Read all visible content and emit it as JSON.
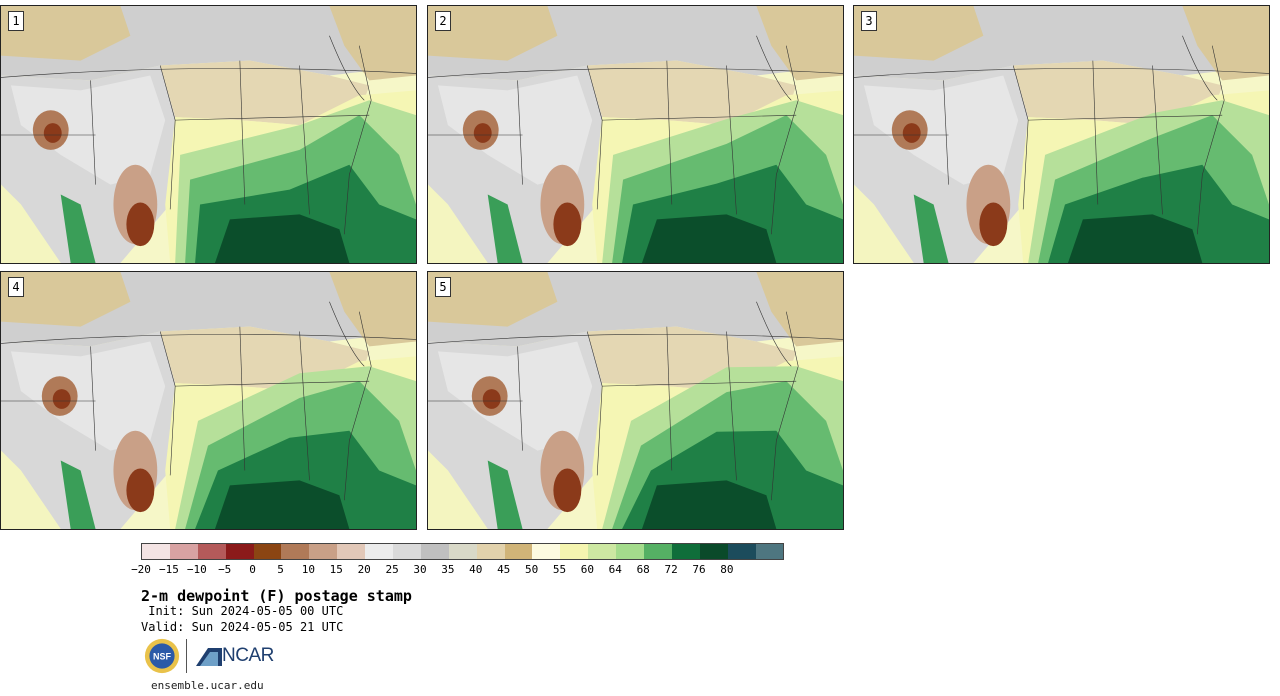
{
  "stamps": [
    {
      "id": "1",
      "variant": 0
    },
    {
      "id": "2",
      "variant": 1
    },
    {
      "id": "3",
      "variant": 2
    },
    {
      "id": "4",
      "variant": 3
    },
    {
      "id": "5",
      "variant": 4
    }
  ],
  "colorbar": {
    "ticks": [
      "−20",
      "−15",
      "−10",
      "−5",
      "0",
      "5",
      "10",
      "15",
      "20",
      "25",
      "30",
      "35",
      "40",
      "45",
      "50",
      "55",
      "60",
      "64",
      "68",
      "72",
      "76",
      "80"
    ],
    "colors": [
      "#f4e4e4",
      "#d8a2a2",
      "#b45a5a",
      "#8b1a1a",
      "#8b4513",
      "#b07a58",
      "#c9a087",
      "#e2c8b8",
      "#ececec",
      "#dadada",
      "#c0c0c0",
      "#d9d9c8",
      "#e2d2ac",
      "#d0b478",
      "#fdfbe0",
      "#f5f5b0",
      "#cde8a2",
      "#a4dc8c",
      "#55b064",
      "#0f6e3a",
      "#0a4a2a",
      "#1c4c5c",
      "#4e7680"
    ]
  },
  "title": "2-m dewpoint (F) postage stamp",
  "init": " Init: Sun 2024-05-05 00 UTC",
  "valid": "Valid: Sun 2024-05-05 21 UTC",
  "logos": {
    "nsf": "NSF",
    "ncar": "NCAR"
  },
  "footer": "ensemble.ucar.edu"
}
